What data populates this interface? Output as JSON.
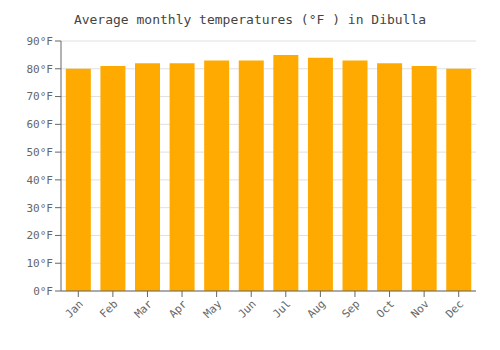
{
  "chart_data": {
    "type": "bar",
    "title": "Average monthly temperatures (°F ) in Dibulla",
    "categories": [
      "Jan",
      "Feb",
      "Mar",
      "Apr",
      "May",
      "Jun",
      "Jul",
      "Aug",
      "Sep",
      "Oct",
      "Nov",
      "Dec"
    ],
    "values": [
      80,
      81,
      82,
      82,
      83,
      83,
      85,
      84,
      83,
      82,
      81,
      80
    ],
    "color": "#FFAA00",
    "ylim": [
      0,
      90
    ],
    "yticks": [
      {
        "value": 0,
        "label": "0°F"
      },
      {
        "value": 10,
        "label": "10°F"
      },
      {
        "value": 20,
        "label": "20°F"
      },
      {
        "value": 30,
        "label": "30°F"
      },
      {
        "value": 40,
        "label": "40°F"
      },
      {
        "value": 50,
        "label": "50°F"
      },
      {
        "value": 60,
        "label": "60°F"
      },
      {
        "value": 70,
        "label": "70°F"
      },
      {
        "value": 80,
        "label": "80°F"
      },
      {
        "value": 90,
        "label": "90°F"
      }
    ],
    "grid": true
  }
}
